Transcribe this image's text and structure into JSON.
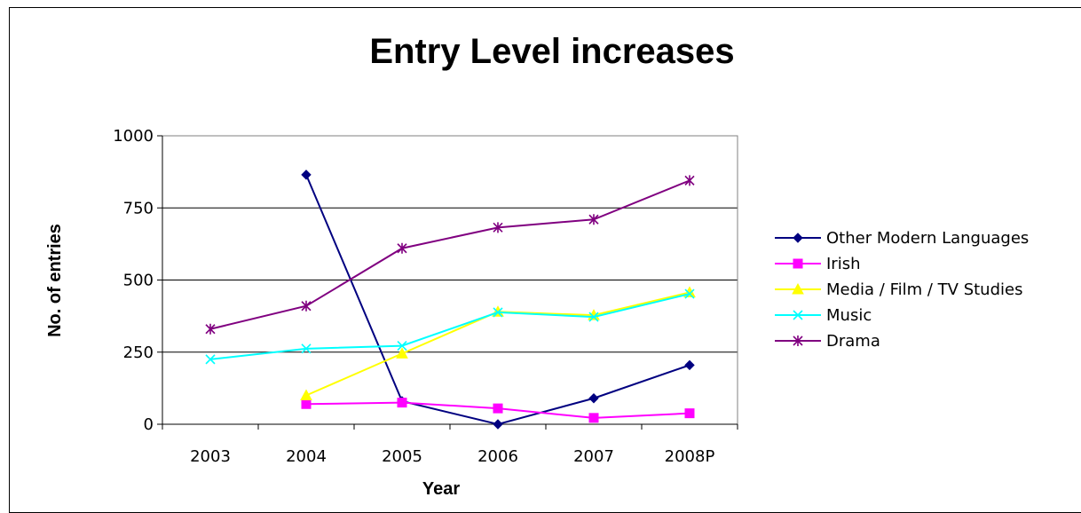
{
  "chart_data": {
    "type": "line",
    "title": "Entry Level increases",
    "xlabel": "Year",
    "ylabel": "No. of entries",
    "categories": [
      "2003",
      "2004",
      "2005",
      "2006",
      "2007",
      "2008P"
    ],
    "ylim": [
      0,
      1000
    ],
    "yticks": [
      0,
      250,
      500,
      750,
      1000
    ],
    "grid": "horizontal",
    "legend_position": "right",
    "series": [
      {
        "name": "Other Modern Languages",
        "color": "#000080",
        "marker": "diamond",
        "values": [
          null,
          865,
          80,
          0,
          90,
          205
        ]
      },
      {
        "name": "Irish",
        "color": "#ff00ff",
        "marker": "square",
        "values": [
          null,
          70,
          75,
          55,
          22,
          38
        ]
      },
      {
        "name": "Media / Film / TV Studies",
        "color": "#ffff00",
        "marker": "triangle",
        "values": [
          null,
          100,
          245,
          390,
          378,
          457
        ]
      },
      {
        "name": "Music",
        "color": "#00ffff",
        "marker": "x",
        "values": [
          225,
          262,
          272,
          388,
          372,
          452
        ]
      },
      {
        "name": "Drama",
        "color": "#800080",
        "marker": "star",
        "values": [
          330,
          410,
          610,
          682,
          710,
          845
        ]
      }
    ]
  }
}
